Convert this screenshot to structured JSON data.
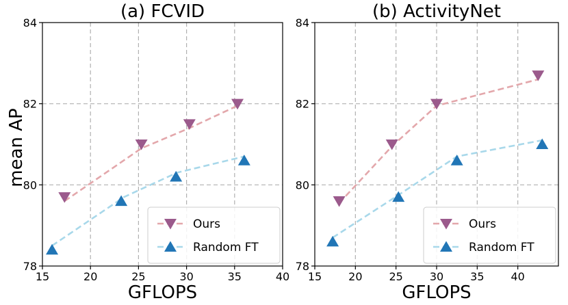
{
  "figure": {
    "ylabel": "mean AP"
  },
  "chart_data": [
    {
      "type": "line",
      "title": "(a) FCVID",
      "xlabel": "GFLOPS",
      "ylabel": "mean AP",
      "xlim": [
        15,
        40
      ],
      "ylim": [
        78,
        84
      ],
      "xticks": [
        15,
        20,
        25,
        30,
        35,
        40
      ],
      "yticks": [
        78,
        80,
        82,
        84
      ],
      "grid": true,
      "legend": "bottom-right",
      "series": [
        {
          "name": "Ours",
          "color": "#e3a7ab",
          "marker_color": "#9b5a8c",
          "marker": "triangle-down",
          "line_x": [
            17.3,
            25.3,
            30.3,
            35.3
          ],
          "line_y": [
            79.6,
            80.9,
            81.4,
            81.95
          ],
          "x": [
            17.3,
            25.3,
            30.3,
            35.3
          ],
          "y": [
            79.7,
            81.0,
            81.5,
            82.0
          ]
        },
        {
          "name": "Random FT",
          "color": "#a8d8ea",
          "marker_color": "#2176b6",
          "marker": "triangle-up",
          "line_x": [
            16.0,
            23.5,
            29.0,
            36.0
          ],
          "line_y": [
            78.5,
            79.7,
            80.3,
            80.7
          ],
          "x": [
            16.0,
            23.2,
            28.9,
            36.0
          ],
          "y": [
            78.4,
            79.6,
            80.2,
            80.6
          ]
        }
      ]
    },
    {
      "type": "line",
      "title": "(b) ActivityNet",
      "xlabel": "GFLOPS",
      "ylabel": "",
      "xlim": [
        15,
        45
      ],
      "ylim": [
        78,
        84
      ],
      "xticks": [
        15,
        20,
        25,
        30,
        35,
        40
      ],
      "yticks": [
        78,
        80,
        82,
        84
      ],
      "grid": true,
      "legend": "bottom-right",
      "series": [
        {
          "name": "Ours",
          "color": "#e3a7ab",
          "marker_color": "#9b5a8c",
          "marker": "triangle-down",
          "line_x": [
            18.0,
            24.5,
            30.0,
            42.5
          ],
          "line_y": [
            79.55,
            80.95,
            81.95,
            82.6
          ],
          "x": [
            18.0,
            24.5,
            30.0,
            42.5
          ],
          "y": [
            79.6,
            81.0,
            82.0,
            82.7
          ]
        },
        {
          "name": "Random FT",
          "color": "#a8d8ea",
          "marker_color": "#2176b6",
          "marker": "triangle-up",
          "line_x": [
            17.2,
            25.3,
            32.5,
            43.0
          ],
          "line_y": [
            78.7,
            79.75,
            80.7,
            81.1
          ],
          "x": [
            17.2,
            25.3,
            32.5,
            43.0
          ],
          "y": [
            78.6,
            79.7,
            80.6,
            81.0
          ]
        }
      ]
    }
  ]
}
